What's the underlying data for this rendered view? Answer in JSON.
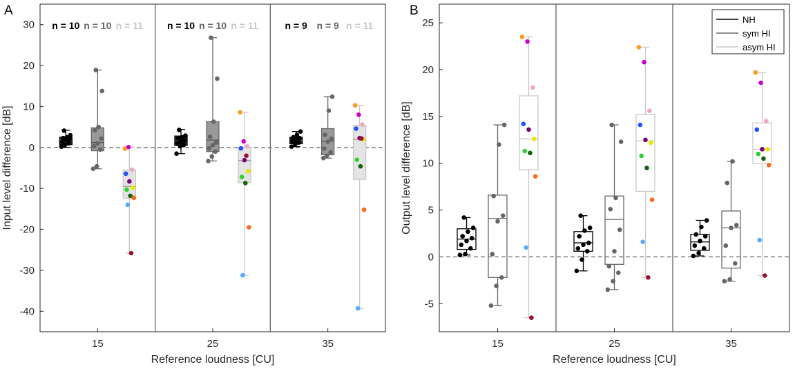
{
  "colors": {
    "NH": "#000000",
    "symHI": "#666666",
    "asymHI": "#c8c8c8",
    "axis": "#262626",
    "zero_line": "#7f7f7f"
  },
  "chart_data": [
    {
      "panel": "A",
      "type": "box",
      "xlabel": "Reference loudness [CU]",
      "ylabel": "Input level difference [dB]",
      "categories": [
        "15",
        "25",
        "35"
      ],
      "ylim": [
        -45,
        35
      ],
      "yticks": [
        "-40",
        "-30",
        "-20",
        "-10",
        "0",
        "10",
        "20",
        "30"
      ],
      "reference_line": 0,
      "filled_boxes": true,
      "group_counts": [
        [
          "n = 10",
          "n = 10",
          "n = 11"
        ],
        [
          "n = 10",
          "n = 10",
          "n = 11"
        ],
        [
          "n = 9",
          "n = 9",
          "n = 11"
        ]
      ],
      "series": [
        {
          "name": "NH",
          "boxes": [
            {
              "min": 0.0,
              "q1": 0.7,
              "median": 1.8,
              "q3": 2.5,
              "max": 4.2,
              "points": [
                0.2,
                0.6,
                1.0,
                1.4,
                1.8,
                2.0,
                2.3,
                2.5,
                3.0,
                4.1
              ]
            },
            {
              "min": -1.5,
              "q1": 0.5,
              "median": 1.5,
              "q3": 2.8,
              "max": 4.4,
              "points": [
                -1.5,
                0.3,
                0.6,
                1.0,
                1.4,
                1.7,
                2.2,
                2.5,
                2.9,
                4.3
              ]
            },
            {
              "min": 0.2,
              "q1": 0.9,
              "median": 1.7,
              "q3": 2.5,
              "max": 3.9,
              "points": [
                0.2,
                0.8,
                1.2,
                1.6,
                1.9,
                2.3,
                2.5,
                3.1,
                3.9
              ]
            }
          ]
        },
        {
          "name": "sym HI",
          "boxes": [
            {
              "min": -5.2,
              "q1": -0.8,
              "median": 1.2,
              "q3": 4.8,
              "max": 18.9,
              "points": [
                -5.2,
                -4.6,
                -0.5,
                0.3,
                1.0,
                2.2,
                4.2,
                5.0,
                13.8,
                18.9
              ]
            },
            {
              "min": -3.3,
              "q1": -1.0,
              "median": 1.8,
              "q3": 6.3,
              "max": 26.8,
              "points": [
                -3.3,
                -2.2,
                -1.0,
                -0.2,
                0.6,
                1.2,
                2.6,
                6.3,
                16.8,
                26.8
              ]
            },
            {
              "min": -2.6,
              "q1": -1.8,
              "median": 1.5,
              "q3": 4.6,
              "max": 12.4,
              "points": [
                -2.6,
                -2.0,
                -1.2,
                -0.3,
                1.4,
                2.1,
                3.1,
                9.0,
                12.4
              ]
            }
          ]
        },
        {
          "name": "asym HI",
          "boxes": [
            {
              "min": -25.8,
              "q1": -12.5,
              "median": -9.5,
              "q3": -5.5,
              "max": 0.0,
              "points": [
                -0.3,
                0.1,
                -5.4,
                -6.4,
                -8.3,
                -9.8,
                -10.3,
                -11.8,
                -12.3,
                -14.0,
                -25.8
              ]
            },
            {
              "min": -31.2,
              "q1": -8.6,
              "median": -3.2,
              "q3": 0.0,
              "max": 8.6,
              "points": [
                8.6,
                1.5,
                0.3,
                -0.2,
                -3.1,
                -5.8,
                -7.2,
                -8.7,
                -19.5,
                -31.2,
                -2.0
              ]
            },
            {
              "min": -39.3,
              "q1": -7.8,
              "median": 2.0,
              "q3": 5.4,
              "max": 10.3,
              "points": [
                10.3,
                8.0,
                5.6,
                4.6,
                2.3,
                2.0,
                -3.0,
                -4.6,
                -15.2,
                -39.3,
                2.2
              ]
            }
          ]
        }
      ]
    },
    {
      "panel": "B",
      "type": "box",
      "xlabel": "Reference loudness [CU]",
      "ylabel": "Output level difference [dB]",
      "categories": [
        "15",
        "25",
        "35"
      ],
      "ylim": [
        -8,
        27
      ],
      "yticks": [
        "-5",
        "0",
        "5",
        "10",
        "15",
        "20",
        "25"
      ],
      "reference_line": 0,
      "filled_boxes": false,
      "legend": {
        "position": "top-right",
        "entries": [
          "NH",
          "sym HI",
          "asym HI"
        ]
      },
      "series": [
        {
          "name": "NH",
          "boxes": [
            {
              "min": 0.2,
              "q1": 0.8,
              "median": 1.9,
              "q3": 3.0,
              "max": 4.2,
              "points": [
                0.2,
                0.3,
                0.9,
                1.3,
                1.7,
                2.0,
                2.2,
                2.7,
                3.1,
                4.2
              ]
            },
            {
              "min": -1.5,
              "q1": 0.6,
              "median": 1.5,
              "q3": 2.7,
              "max": 4.4,
              "points": [
                -1.5,
                -0.3,
                0.6,
                0.9,
                1.3,
                1.5,
                2.2,
                2.8,
                3.1,
                4.4
              ]
            },
            {
              "min": 0.1,
              "q1": 0.7,
              "median": 1.6,
              "q3": 2.4,
              "max": 3.9,
              "points": [
                0.1,
                0.4,
                0.9,
                1.2,
                1.7,
                2.2,
                2.4,
                3.2,
                3.9
              ]
            }
          ]
        },
        {
          "name": "sym HI",
          "boxes": [
            {
              "min": -5.2,
              "q1": -2.2,
              "median": 4.1,
              "q3": 6.6,
              "max": 14.1,
              "points": [
                -5.2,
                -3.1,
                -2.2,
                0.3,
                3.8,
                4.4,
                6.5,
                12.0,
                14.1
              ]
            },
            {
              "min": -3.5,
              "q1": -0.8,
              "median": 4.0,
              "q3": 6.5,
              "max": 14.1,
              "points": [
                -3.5,
                -2.6,
                -1.7,
                -1.0,
                0.6,
                2.9,
                5.1,
                6.3,
                12.3,
                14.1
              ]
            },
            {
              "min": -2.6,
              "q1": -1.2,
              "median": 3.1,
              "q3": 4.9,
              "max": 10.2,
              "points": [
                -2.6,
                -2.4,
                -0.7,
                1.2,
                3.1,
                3.4,
                7.9,
                10.2
              ]
            }
          ]
        },
        {
          "name": "asym HI",
          "boxes": [
            {
              "min": -6.5,
              "q1": 9.3,
              "median": 12.6,
              "q3": 17.2,
              "max": 23.5,
              "points": [
                23.5,
                23.0,
                18.1,
                14.2,
                13.6,
                12.6,
                11.3,
                11.1,
                8.6,
                1.0,
                -6.5
              ]
            },
            {
              "min": -2.2,
              "q1": 7.0,
              "median": 12.4,
              "q3": 15.2,
              "max": 22.4,
              "points": [
                22.4,
                20.8,
                15.6,
                14.1,
                12.5,
                12.2,
                10.8,
                9.5,
                6.1,
                1.6,
                -2.2
              ]
            },
            {
              "min": -2.0,
              "q1": 10.0,
              "median": 11.5,
              "q3": 14.3,
              "max": 19.7,
              "points": [
                19.7,
                18.6,
                14.5,
                13.6,
                11.5,
                11.5,
                11.0,
                10.5,
                9.8,
                1.8,
                -2.0
              ]
            }
          ]
        }
      ]
    }
  ]
}
